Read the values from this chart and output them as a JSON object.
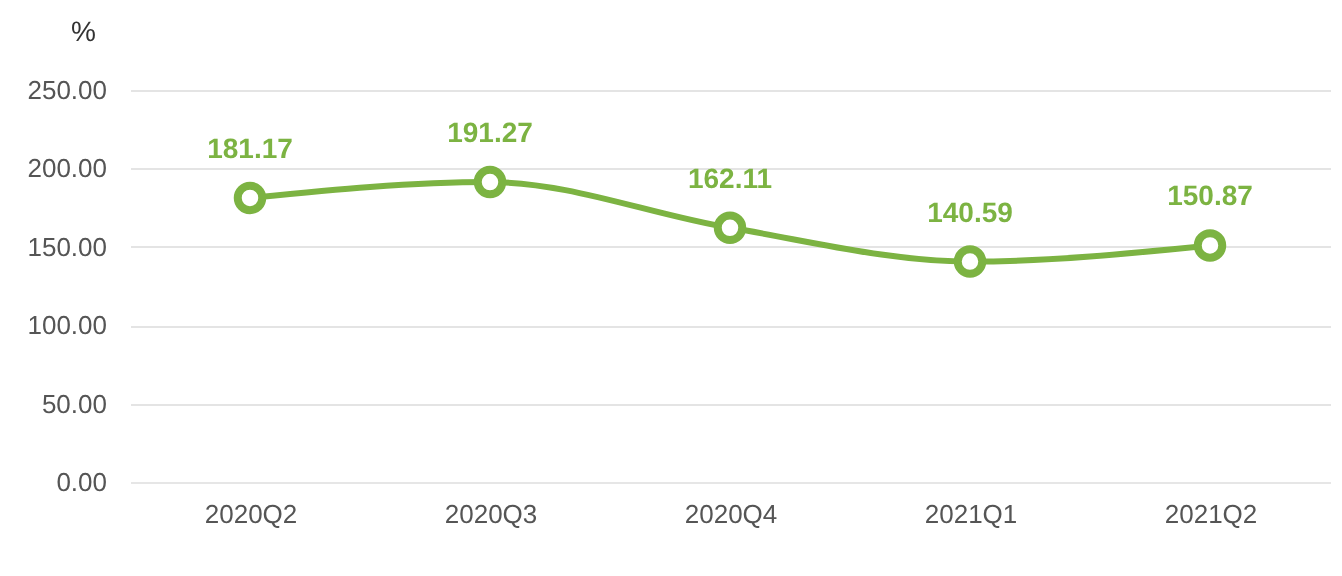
{
  "chart_data": {
    "type": "line",
    "ylabel": "%",
    "categories": [
      "2020Q2",
      "2020Q3",
      "2020Q4",
      "2021Q1",
      "2021Q2"
    ],
    "series": [
      {
        "color": "#7cb342",
        "values": [
          181.17,
          191.27,
          162.11,
          140.59,
          150.87
        ]
      }
    ],
    "ylim": [
      0,
      250
    ],
    "yticks": [
      {
        "value": 0,
        "label": "0.00"
      },
      {
        "value": 50,
        "label": "50.00"
      },
      {
        "value": 100,
        "label": "100.00"
      },
      {
        "value": 150,
        "label": "150.00"
      },
      {
        "value": 200,
        "label": "200.00"
      },
      {
        "value": 250,
        "label": "250.00"
      }
    ],
    "grid": "y",
    "marker": "circle",
    "line_style": "solid",
    "data_labels": true
  }
}
